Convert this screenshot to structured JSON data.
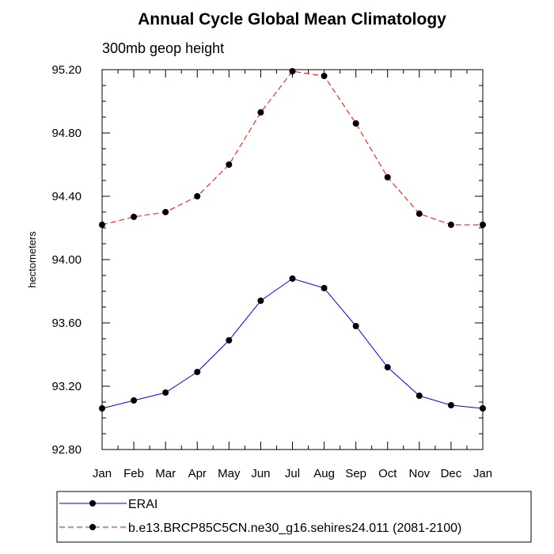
{
  "chart_data": {
    "type": "line",
    "title": "Annual Cycle Global Mean Climatology",
    "subtitle": "300mb geop height",
    "xlabel": "",
    "ylabel": "hectometers",
    "categories": [
      "Jan",
      "Feb",
      "Mar",
      "Apr",
      "May",
      "Jun",
      "Jul",
      "Aug",
      "Sep",
      "Oct",
      "Nov",
      "Dec",
      "Jan"
    ],
    "ylim": [
      92.8,
      95.2
    ],
    "yticks": [
      "92.80",
      "93.20",
      "93.60",
      "94.00",
      "94.40",
      "94.80",
      "95.20"
    ],
    "series": [
      {
        "name": "ERAI",
        "color": "#0000ff",
        "dash": "solid",
        "marker": "filled-circle",
        "values": [
          93.06,
          93.11,
          93.16,
          93.29,
          93.49,
          93.74,
          93.88,
          93.82,
          93.58,
          93.32,
          93.14,
          93.08,
          93.06
        ]
      },
      {
        "name": "b.e13.BRCP85C5CN.ne30_g16.sehires24.011 (2081-2100)",
        "color": "#ff0000",
        "dash": "dashed",
        "marker": "filled-circle",
        "values": [
          94.22,
          94.27,
          94.3,
          94.4,
          94.6,
          94.93,
          95.19,
          95.16,
          94.86,
          94.52,
          94.29,
          94.22,
          94.22
        ]
      }
    ],
    "legend_position": "bottom"
  }
}
